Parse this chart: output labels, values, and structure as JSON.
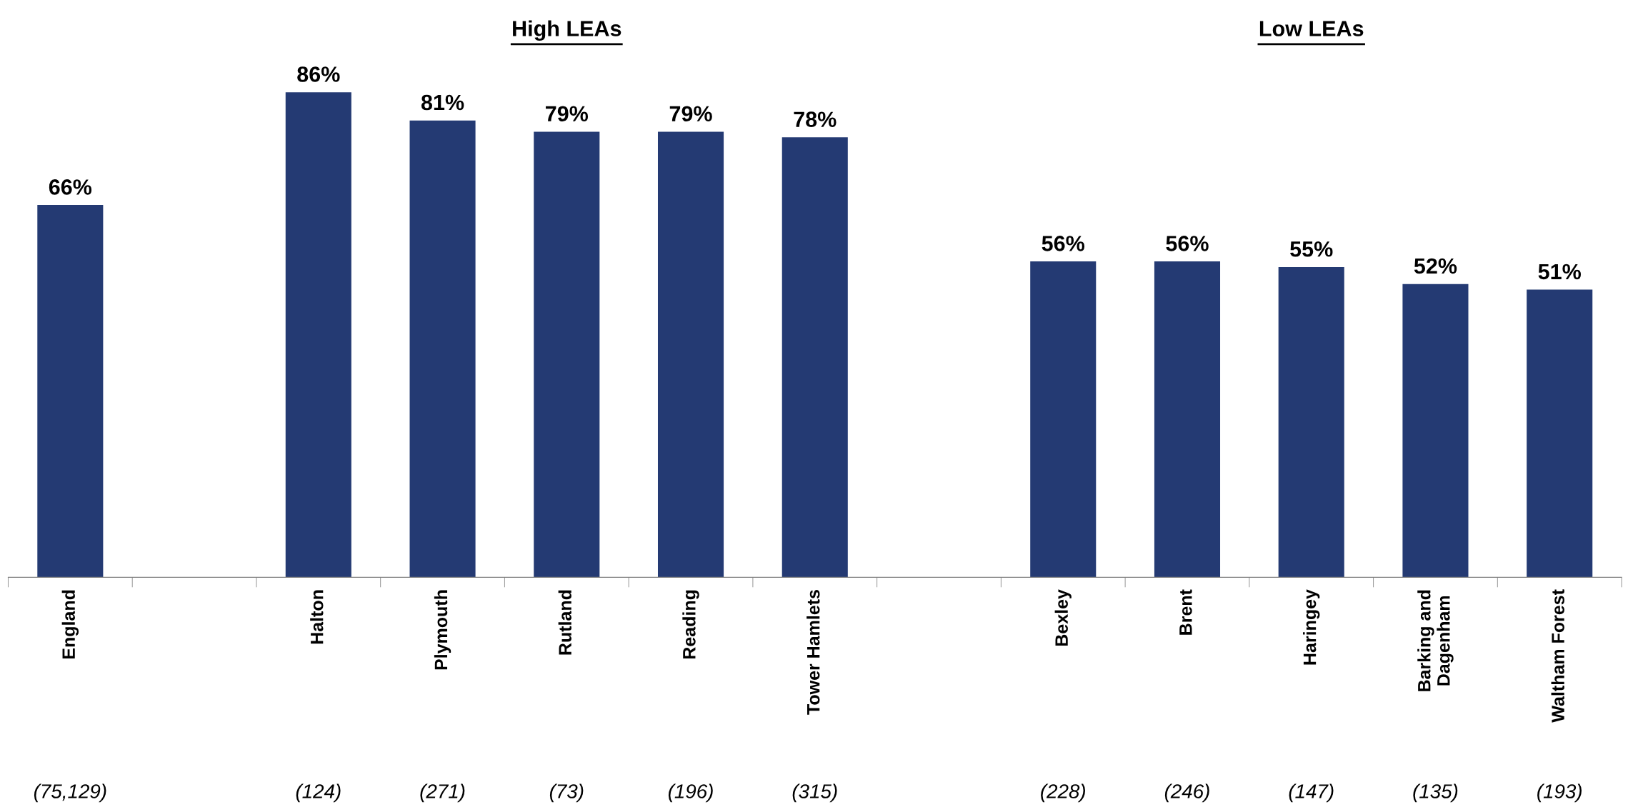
{
  "chart_data": {
    "type": "bar",
    "categories": [
      "England",
      null,
      "Halton",
      "Plymouth",
      "Rutland",
      "Reading",
      "Tower Hamlets",
      null,
      "Bexley",
      "Brent",
      "Haringey",
      "Barking and\nDagenham",
      "Waltham Forest"
    ],
    "values": [
      66,
      null,
      86,
      81,
      79,
      79,
      78,
      null,
      56,
      56,
      55,
      52,
      51
    ],
    "value_labels": [
      "66%",
      null,
      "86%",
      "81%",
      "79%",
      "79%",
      "78%",
      null,
      "56%",
      "56%",
      "55%",
      "52%",
      "51%"
    ],
    "color": "#243a73",
    "tick_labels": "x",
    "annotations": [
      "High LEAs",
      "Low LEAs",
      "(75,129)",
      "(124)",
      "(271)",
      "(73)",
      "(196)",
      "(315)",
      "(228)",
      "(246)",
      "(147)",
      "(135)",
      "(193)"
    ]
  }
}
